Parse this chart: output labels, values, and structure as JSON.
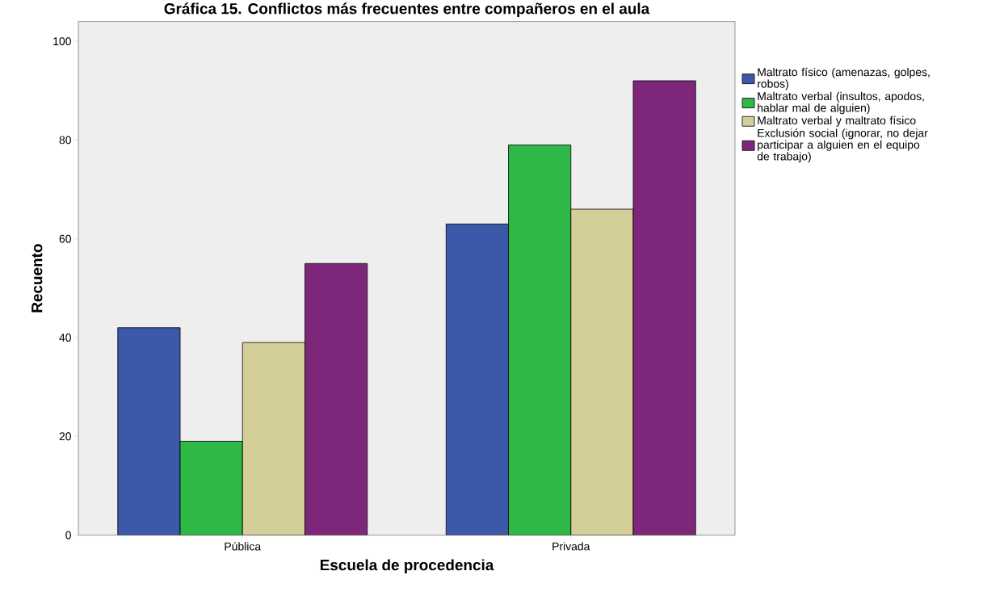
{
  "chart_data": {
    "type": "bar",
    "title": "Gráfica 15. Conflictos más frecuentes entre compañeros en el aula",
    "xlabel": "Escuela de procedencia",
    "ylabel": "Recuento",
    "categories": [
      "Pública",
      "Privada"
    ],
    "series": [
      {
        "name": "Maltrato físico (amenazas, golpes, robos)",
        "color": "#3c58a8",
        "values": [
          42,
          63
        ]
      },
      {
        "name": "Maltrato verbal (insultos, apodos, hablar mal de alguien)",
        "color": "#2eb847",
        "values": [
          19,
          79
        ]
      },
      {
        "name": "Maltrato verbal y maltrato físico",
        "color": "#d4ce98",
        "values": [
          39,
          66
        ]
      },
      {
        "name": "Exclusión social (ignorar, no dejar participar a alguien en el equipo de trabajo)",
        "color": "#7e2679",
        "values": [
          55,
          92
        ]
      }
    ],
    "ylim": [
      0,
      104
    ],
    "yticks": [
      0,
      20,
      40,
      60,
      80,
      100
    ],
    "grid": false,
    "legend": "right"
  }
}
